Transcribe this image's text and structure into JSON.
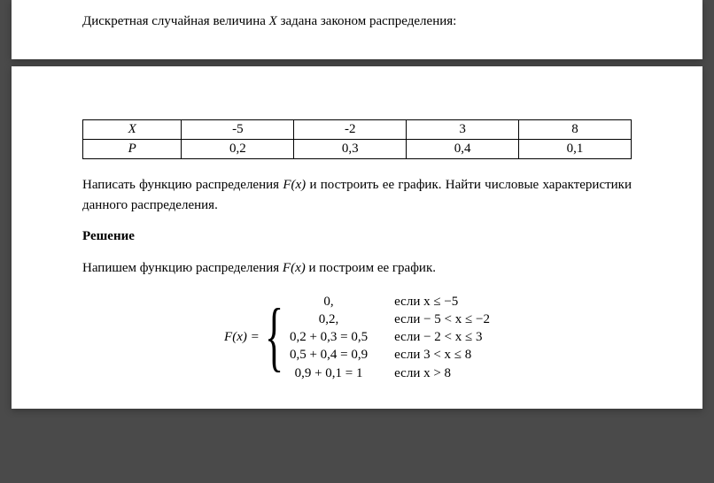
{
  "intro": {
    "prefix": "Дискретная случайная величина ",
    "var": "X",
    "suffix": " задана законом распределения:"
  },
  "table": {
    "row1": [
      "X",
      "-5",
      "-2",
      "3",
      "8"
    ],
    "row2": [
      "P",
      "0,2",
      "0,3",
      "0,4",
      "0,1"
    ]
  },
  "task": {
    "prefix": "Написать функцию распределения ",
    "fx": "F(x)",
    "middle": " и построить ее график. Найти числовые характеристики данного распределения."
  },
  "solution_title": "Решение",
  "solution_intro": {
    "prefix": "Напишем функцию распределения ",
    "fx": "F(x)",
    "suffix": " и построим ее график."
  },
  "formula": {
    "label": "F(x) =",
    "values": [
      "0,",
      "0,2,",
      "0,2 + 0,3 = 0,5",
      "0,5 + 0,4 = 0,9",
      "0,9 + 0,1  = 1"
    ],
    "conditions": [
      "если x ≤ −5",
      "если  − 5 < x ≤ −2",
      "если − 2 < x ≤ 3",
      "если  3 < x ≤ 8",
      "если  x > 8"
    ]
  }
}
